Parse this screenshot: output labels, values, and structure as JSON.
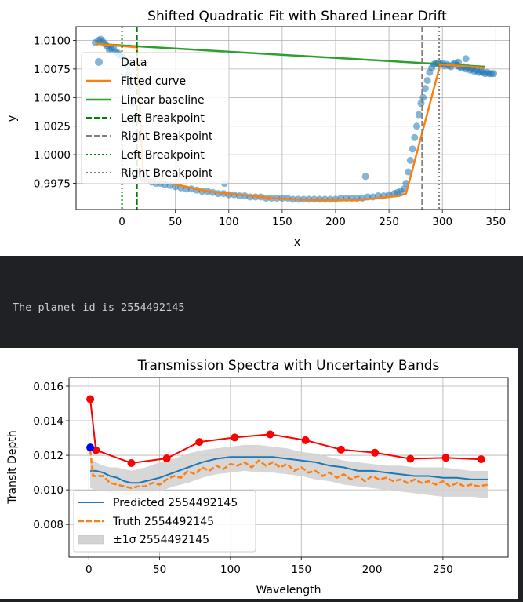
{
  "output": {
    "text": "The planet id is 2554492145"
  },
  "colors": {
    "data_blue": "#1f77b4",
    "fit_orange": "#ff7f0e",
    "baseline_green": "#2ca02c",
    "breakpoint_green": "#008000",
    "breakpoint_gray": "#808080",
    "truth_red": "#ff0000",
    "special_point_blue": "#0000ff",
    "band_gray": "#d3d3d3",
    "output_bg": "#1f2124",
    "output_fg": "#c9cdd2"
  },
  "chart_data": [
    {
      "type": "scatter",
      "title": "Shifted Quadratic Fit with Shared Linear Drift",
      "xlabel": "x",
      "ylabel": "y",
      "xlim": [
        -43,
        363
      ],
      "ylim": [
        0.9952,
        1.0112
      ],
      "xticks": [
        0,
        50,
        100,
        150,
        200,
        250,
        300,
        350
      ],
      "xtick_labels": [
        "0",
        "50",
        "100",
        "150",
        "200",
        "250",
        "300",
        "350"
      ],
      "yticks": [
        0.9975,
        1.0,
        1.0025,
        1.005,
        1.0075,
        1.01
      ],
      "ytick_labels": [
        "0.9975",
        "1.0000",
        "1.0025",
        "1.0050",
        "1.0075",
        "1.0100"
      ],
      "grid": true,
      "legend_position": "upper-left",
      "legend": [
        "Data",
        "Fitted curve",
        "Linear baseline",
        "Left Breakpoint",
        "Right Breakpoint",
        "Left Breakpoint",
        "Right Breakpoint"
      ],
      "scatter_points": {
        "x": [
          -25,
          -22,
          -20,
          -18,
          -16,
          -14,
          -12,
          -10,
          -8,
          -6,
          -4,
          -2,
          0,
          2,
          4,
          6,
          8,
          10,
          12,
          14,
          16,
          18,
          20,
          24,
          28,
          32,
          36,
          40,
          45,
          50,
          55,
          60,
          65,
          70,
          75,
          80,
          85,
          90,
          95,
          100,
          105,
          110,
          115,
          120,
          125,
          130,
          135,
          140,
          145,
          150,
          155,
          160,
          165,
          170,
          175,
          180,
          185,
          190,
          195,
          200,
          205,
          210,
          215,
          220,
          225,
          230,
          235,
          240,
          245,
          250,
          255,
          258,
          261,
          264,
          266,
          268,
          270,
          272,
          274,
          276,
          278,
          280,
          282,
          284,
          286,
          288,
          290,
          292,
          294,
          296,
          298,
          300,
          302,
          304,
          306,
          308,
          310,
          312,
          314,
          316,
          318,
          320,
          322,
          324,
          326,
          328,
          330,
          332,
          334,
          336,
          338,
          340,
          342,
          344,
          346,
          348,
          96,
          228,
          315,
          322
        ],
        "y": [
          1.0098,
          1.01,
          1.0101,
          1.0099,
          1.0097,
          1.0095,
          1.0092,
          1.0093,
          1.0094,
          1.009,
          1.0089,
          1.0087,
          1.0086,
          1.0084,
          1.0078,
          1.007,
          1.006,
          1.0045,
          1.003,
          1.0015,
          1.0,
          0.9985,
          0.9979,
          0.9977,
          0.9976,
          0.9975,
          0.9975,
          0.9974,
          0.9973,
          0.9972,
          0.9971,
          0.997,
          0.997,
          0.9969,
          0.9968,
          0.9968,
          0.9967,
          0.9966,
          0.9966,
          0.9965,
          0.9965,
          0.9964,
          0.9964,
          0.9963,
          0.9963,
          0.9963,
          0.9962,
          0.9962,
          0.9962,
          0.9962,
          0.9962,
          0.9961,
          0.9961,
          0.9961,
          0.9961,
          0.9961,
          0.9961,
          0.9961,
          0.9961,
          0.9961,
          0.9962,
          0.9962,
          0.9962,
          0.9962,
          0.9962,
          0.9963,
          0.9963,
          0.9964,
          0.9964,
          0.9965,
          0.9966,
          0.9967,
          0.9968,
          0.997,
          0.9975,
          0.9985,
          0.9995,
          1.0005,
          1.0015,
          1.0025,
          1.0035,
          1.0045,
          1.005,
          1.0058,
          1.0065,
          1.0072,
          1.0076,
          1.0079,
          1.008,
          1.008,
          1.0079,
          1.008,
          1.0078,
          1.0079,
          1.0078,
          1.0077,
          1.0079,
          1.008,
          1.0078,
          1.0077,
          1.0076,
          1.0077,
          1.0075,
          1.0076,
          1.0074,
          1.0075,
          1.0073,
          1.0074,
          1.0072,
          1.0073,
          1.0072,
          1.0071,
          1.0072,
          1.0071,
          1.0071,
          1.0071,
          0.9975,
          0.9981,
          1.0081,
          1.0084
        ]
      },
      "fitted_curve": {
        "x": [
          -25,
          14,
          20,
          40,
          60,
          80,
          100,
          120,
          140,
          160,
          180,
          200,
          220,
          240,
          260,
          266,
          298,
          340
        ],
        "y": [
          1.0097,
          1.0094,
          0.9978,
          0.9976,
          0.9972,
          0.9968,
          0.9966,
          0.9964,
          0.9962,
          0.9961,
          0.996,
          0.996,
          0.996,
          0.9962,
          0.9964,
          0.9966,
          1.0079,
          1.0076
        ]
      },
      "linear_baseline": {
        "x": [
          -25,
          340
        ],
        "y": [
          1.0097,
          1.0077
        ]
      },
      "breakpoints": [
        {
          "x": 14,
          "style": "dashed",
          "color": "#008000"
        },
        {
          "x": 281,
          "style": "dashed",
          "color": "#808080"
        },
        {
          "x": 0,
          "style": "dotted",
          "color": "#008000"
        },
        {
          "x": 297,
          "style": "dotted",
          "color": "#808080"
        }
      ]
    },
    {
      "type": "line",
      "title": "Transmission Spectra with Uncertainty Bands",
      "xlabel": "Wavelength",
      "ylabel": "Transit Depth",
      "xlim": [
        -14,
        296
      ],
      "ylim": [
        0.0061,
        0.0165
      ],
      "xticks": [
        0,
        50,
        100,
        150,
        200,
        250
      ],
      "xtick_labels": [
        "0",
        "50",
        "100",
        "150",
        "200",
        "250"
      ],
      "yticks": [
        0.008,
        0.01,
        0.012,
        0.014,
        0.016
      ],
      "ytick_labels": [
        "0.008",
        "0.010",
        "0.012",
        "0.014",
        "0.016"
      ],
      "grid": true,
      "legend_position": "lower-left",
      "legend": [
        "Predicted 2554492145",
        "Truth 2554492145",
        "±1σ 2554492145"
      ],
      "predicted": {
        "x": [
          1,
          5,
          10,
          15,
          20,
          25,
          30,
          35,
          40,
          50,
          60,
          70,
          80,
          90,
          100,
          110,
          120,
          130,
          140,
          150,
          160,
          170,
          180,
          190,
          200,
          210,
          220,
          230,
          240,
          250,
          260,
          270,
          282
        ],
        "y": [
          0.0111,
          0.0111,
          0.011,
          0.0108,
          0.0107,
          0.0105,
          0.0104,
          0.0104,
          0.0105,
          0.0107,
          0.011,
          0.0113,
          0.0116,
          0.0118,
          0.0119,
          0.0119,
          0.0119,
          0.0119,
          0.0118,
          0.0117,
          0.0116,
          0.0114,
          0.0113,
          0.0111,
          0.0111,
          0.011,
          0.0109,
          0.0108,
          0.0108,
          0.0107,
          0.0107,
          0.0106,
          0.0106
        ]
      },
      "truth": {
        "x": [
          1,
          3,
          5,
          10,
          15,
          20,
          25,
          30,
          35,
          40,
          45,
          50,
          55,
          60,
          65,
          70,
          75,
          80,
          85,
          90,
          95,
          100,
          105,
          110,
          115,
          120,
          125,
          130,
          135,
          140,
          145,
          150,
          155,
          160,
          165,
          170,
          175,
          180,
          185,
          190,
          195,
          200,
          205,
          210,
          215,
          220,
          225,
          230,
          235,
          240,
          245,
          250,
          255,
          260,
          265,
          270,
          275,
          282
        ],
        "y": [
          0.0123,
          0.0108,
          0.0108,
          0.0108,
          0.0104,
          0.0103,
          0.0102,
          0.0101,
          0.0102,
          0.0102,
          0.0104,
          0.0103,
          0.0106,
          0.0108,
          0.0107,
          0.0111,
          0.0109,
          0.0113,
          0.0111,
          0.0114,
          0.0112,
          0.0115,
          0.0114,
          0.0116,
          0.0113,
          0.0117,
          0.0114,
          0.0116,
          0.0113,
          0.0115,
          0.0111,
          0.0113,
          0.011,
          0.0111,
          0.0108,
          0.011,
          0.0107,
          0.0109,
          0.0106,
          0.0108,
          0.0105,
          0.0108,
          0.0106,
          0.0107,
          0.0105,
          0.0106,
          0.0104,
          0.0106,
          0.0104,
          0.0105,
          0.0103,
          0.0105,
          0.0102,
          0.0104,
          0.0102,
          0.0103,
          0.0102,
          0.0103
        ]
      },
      "band": {
        "x": [
          1,
          5,
          10,
          15,
          20,
          25,
          30,
          35,
          40,
          50,
          60,
          70,
          80,
          90,
          100,
          110,
          120,
          130,
          140,
          150,
          160,
          170,
          180,
          190,
          200,
          210,
          220,
          230,
          240,
          250,
          260,
          270,
          282
        ],
        "upper": [
          0.0117,
          0.0116,
          0.0114,
          0.0113,
          0.0113,
          0.0112,
          0.0111,
          0.0112,
          0.0113,
          0.0116,
          0.0118,
          0.0121,
          0.0123,
          0.0124,
          0.0125,
          0.0126,
          0.0126,
          0.0125,
          0.0124,
          0.0122,
          0.0121,
          0.0119,
          0.0117,
          0.0116,
          0.0115,
          0.0114,
          0.0114,
          0.0113,
          0.0113,
          0.0113,
          0.0112,
          0.0111,
          0.0111
        ],
        "lower": [
          0.0101,
          0.01,
          0.0099,
          0.0098,
          0.0097,
          0.0097,
          0.0097,
          0.0097,
          0.0098,
          0.0099,
          0.0102,
          0.0104,
          0.0107,
          0.0109,
          0.011,
          0.0111,
          0.011,
          0.011,
          0.0109,
          0.0108,
          0.0106,
          0.0105,
          0.0103,
          0.0102,
          0.0101,
          0.01,
          0.0099,
          0.0098,
          0.0097,
          0.0096,
          0.0096,
          0.0096,
          0.0095
        ]
      },
      "red_markers": {
        "x": [
          1,
          5,
          30,
          55,
          78,
          103,
          128,
          153,
          178,
          202,
          227,
          252,
          277
        ],
        "y": [
          0.01525,
          0.0123,
          0.01155,
          0.01182,
          0.01277,
          0.01303,
          0.01321,
          0.01287,
          0.01233,
          0.01215,
          0.0118,
          0.01186,
          0.01177
        ]
      },
      "blue_point": {
        "x": 1,
        "y": 0.01245
      }
    }
  ]
}
